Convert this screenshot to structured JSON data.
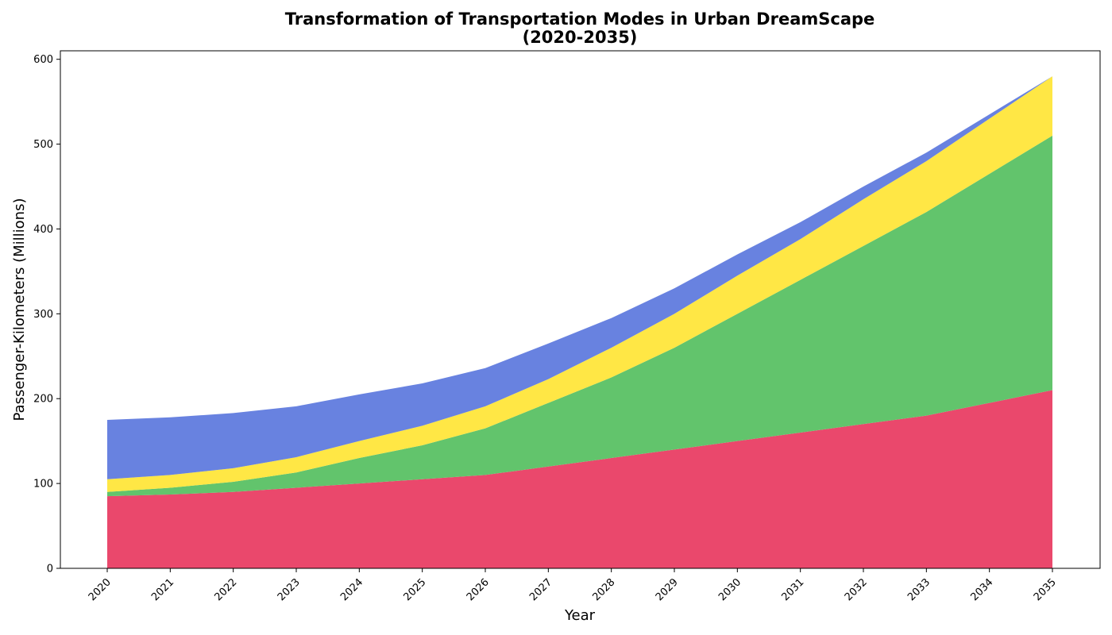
{
  "chart_data": {
    "type": "area",
    "stacked": true,
    "title_lines": [
      "Transformation of Transportation Modes in Urban DreamScape",
      "(2020-2035)"
    ],
    "xlabel": "Year",
    "ylabel": "Passenger-Kilometers (Millions)",
    "x": [
      "2020",
      "2021",
      "2022",
      "2023",
      "2024",
      "2025",
      "2026",
      "2027",
      "2028",
      "2029",
      "2030",
      "2031",
      "2032",
      "2033",
      "2034",
      "2035"
    ],
    "ylim": [
      0,
      610
    ],
    "yticks": [
      "0",
      "100",
      "200",
      "300",
      "400",
      "500",
      "600"
    ],
    "grid": false,
    "legend": "none",
    "series": [
      {
        "color": "#e8385f",
        "values": [
          85,
          87,
          90,
          95,
          100,
          105,
          110,
          120,
          130,
          140,
          150,
          160,
          170,
          180,
          195,
          210
        ]
      },
      {
        "color": "#55bf60",
        "values": [
          5,
          8,
          12,
          18,
          30,
          40,
          55,
          75,
          95,
          120,
          150,
          180,
          210,
          240,
          270,
          300
        ]
      },
      {
        "color": "#ffe535",
        "values": [
          15,
          15,
          16,
          18,
          20,
          23,
          26,
          28,
          35,
          40,
          45,
          48,
          55,
          60,
          65,
          70
        ]
      },
      {
        "color": "#5b77dd",
        "values": [
          70,
          68,
          65,
          60,
          55,
          50,
          45,
          42,
          35,
          30,
          25,
          20,
          15,
          10,
          5,
          0
        ]
      }
    ]
  }
}
